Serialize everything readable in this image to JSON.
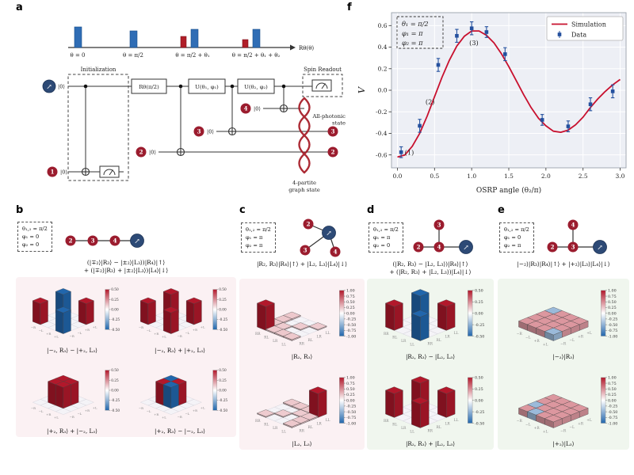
{
  "figure": {
    "panel_labels": {
      "a": "a",
      "b": "b",
      "c": "c",
      "d": "d",
      "e": "e",
      "f": "f"
    },
    "spin_arrow": "↗"
  },
  "panel_a": {
    "pulse_labels": [
      "θ = 0",
      "θ = π/2",
      "θ = π/2 + θ₁",
      "θ = π/2 + θ₁ + θ₂"
    ],
    "pulse_axis_label": "Rθ(θ)",
    "init_label": "Initialization",
    "readout_label": "Spin Readout",
    "gates": [
      "Rθ(π/2)",
      "U(θ₁, φ₁)",
      "U(θ₂, φ₂)"
    ],
    "ket0": "|0⟩",
    "qubits": [
      "1",
      "2",
      "3",
      "4"
    ],
    "allphotonic_label": [
      "All-photonic",
      "state"
    ],
    "graphstate_label": [
      "4-partite",
      "graph state"
    ]
  },
  "chart_data": {
    "type": "line+scatter",
    "title": "",
    "xlabel": "OSRP angle (θ₂/π)",
    "ylabel": "V",
    "xlim": [
      -0.08,
      3.08
    ],
    "ylim": [
      -0.72,
      0.72
    ],
    "xticks": [
      0,
      0.5,
      1,
      1.5,
      2,
      2.5,
      3
    ],
    "yticks": [
      -0.6,
      -0.4,
      -0.2,
      0,
      0.2,
      0.4,
      0.6
    ],
    "grid": true,
    "legend": [
      "Simulation",
      "Data"
    ],
    "legend_position": "upper right",
    "params_box": [
      "θ₁ = π/2",
      "φ₁ = π",
      "φ₂ = π"
    ],
    "annotations": [
      {
        "text": "(1)",
        "x": 0.16,
        "y": -0.6
      },
      {
        "text": "(2)",
        "x": 0.44,
        "y": -0.13
      },
      {
        "text": "(3)",
        "x": 1.03,
        "y": 0.42
      }
    ],
    "simulation": {
      "x": [
        0,
        0.1,
        0.2,
        0.3,
        0.4,
        0.5,
        0.6,
        0.7,
        0.8,
        0.9,
        1,
        1.1,
        1.2,
        1.3,
        1.4,
        1.5,
        1.6,
        1.7,
        1.8,
        1.9,
        2,
        2.1,
        2.2,
        2.3,
        2.4,
        2.5,
        2.6,
        2.7,
        2.8,
        2.9,
        3
      ],
      "y": [
        -0.62,
        -0.6,
        -0.52,
        -0.4,
        -0.24,
        -0.06,
        0.12,
        0.28,
        0.41,
        0.5,
        0.55,
        0.55,
        0.51,
        0.44,
        0.34,
        0.22,
        0.09,
        -0.04,
        -0.16,
        -0.26,
        -0.33,
        -0.38,
        -0.39,
        -0.37,
        -0.32,
        -0.25,
        -0.16,
        -0.08,
        -0.01,
        0.05,
        0.1
      ]
    },
    "data_points": [
      {
        "x": 0.05,
        "y": -0.575,
        "err": 0.05
      },
      {
        "x": 0.3,
        "y": -0.33,
        "err": 0.06
      },
      {
        "x": 0.55,
        "y": 0.235,
        "err": 0.06
      },
      {
        "x": 0.8,
        "y": 0.505,
        "err": 0.06
      },
      {
        "x": 1.0,
        "y": 0.575,
        "err": 0.06
      },
      {
        "x": 1.2,
        "y": 0.54,
        "err": 0.05
      },
      {
        "x": 1.45,
        "y": 0.335,
        "err": 0.06
      },
      {
        "x": 1.95,
        "y": -0.275,
        "err": 0.05
      },
      {
        "x": 2.3,
        "y": -0.335,
        "err": 0.05
      },
      {
        "x": 2.6,
        "y": -0.13,
        "err": 0.06
      },
      {
        "x": 2.9,
        "y": -0.01,
        "err": 0.06
      }
    ]
  },
  "panel_b": {
    "params": [
      "θ₁,₂ = π/2",
      "φ₁ = 0",
      "φ₂ = 0"
    ],
    "nodes": [
      "2",
      "3",
      "4"
    ],
    "state": [
      "(|∓₂⟩|R₃⟩ − |±₂⟩|L₃⟩)|R₄⟩|↑⟩",
      "+ (|∓₂⟩|R₃⟩ + |±₂⟩|L₃⟩)|L₄⟩|↓⟩"
    ],
    "colorbar": {
      "max": 0.5,
      "ticks": [
        "0.50",
        "0.25",
        "0.00",
        "-0.25",
        "-0.50"
      ]
    },
    "axis_labels": [
      "−R",
      "−L",
      "+R",
      "+L"
    ],
    "matrices": [
      {
        "label": "|−₂, R₃⟩ − |+₂, L₃⟩",
        "values": [
          [
            0.5,
            0,
            0,
            -0.5
          ],
          [
            0,
            0,
            0,
            0
          ],
          [
            0,
            0,
            0,
            0
          ],
          [
            -0.5,
            0,
            0,
            0.5
          ]
        ]
      },
      {
        "label": "|−₂, R₃⟩ + |+₂, L₃⟩",
        "values": [
          [
            0.5,
            0,
            0,
            0.5
          ],
          [
            0,
            0,
            0,
            0
          ],
          [
            0,
            0,
            0,
            0
          ],
          [
            0.5,
            0,
            0,
            0.5
          ]
        ]
      },
      {
        "label": "|+₂, R₃⟩ + |−₂, L₃⟩",
        "values": [
          [
            0,
            0,
            0,
            0
          ],
          [
            0,
            0.5,
            0.5,
            0
          ],
          [
            0,
            0.5,
            0.5,
            0
          ],
          [
            0,
            0,
            0,
            0
          ]
        ]
      },
      {
        "label": "|+₂, R₃⟩ − |−₂, L₃⟩",
        "values": [
          [
            0,
            0,
            0,
            0
          ],
          [
            0,
            0.5,
            -0.5,
            0
          ],
          [
            0,
            -0.5,
            0.5,
            0
          ],
          [
            0,
            0,
            0,
            0
          ]
        ]
      }
    ]
  },
  "panel_c": {
    "params": [
      "θ₁,₂ = π/2",
      "φ₁ = π",
      "φ₂ = π"
    ],
    "nodes": [
      "2",
      "3",
      "4"
    ],
    "state": [
      "|R₂, R₃⟩|R₄⟩|↑⟩ + |L₂, L₃⟩|L₄⟩|↓⟩"
    ],
    "colorbar": {
      "max": 1.0,
      "ticks": [
        "1.00",
        "0.75",
        "0.50",
        "0.25",
        "0.00",
        "-0.25",
        "-0.50",
        "-0.75",
        "-1.00"
      ]
    },
    "axis_labels": [
      "RR",
      "RL",
      "LR",
      "LL"
    ],
    "matrices": [
      {
        "label": "|R₂, R₃⟩",
        "values": [
          [
            1,
            0.05,
            0.05,
            0.05
          ],
          [
            0.05,
            0.04,
            0,
            0
          ],
          [
            0.05,
            0,
            0.04,
            0
          ],
          [
            0.05,
            0,
            0,
            0.04
          ]
        ]
      },
      {
        "label": "|L₂, L₃⟩",
        "values": [
          [
            0.04,
            0,
            0,
            0.05
          ],
          [
            0,
            0.04,
            0,
            0.05
          ],
          [
            0,
            0,
            0.04,
            0.05
          ],
          [
            0.05,
            0.05,
            0.05,
            1
          ]
        ]
      }
    ]
  },
  "panel_d": {
    "params": [
      "θ₁,₂ = π/2",
      "φ₁ = π",
      "φ₂ = 0"
    ],
    "nodes": [
      "3",
      "2",
      "4"
    ],
    "state": [
      "(|R₂, R₃⟩ − |L₂, L₃⟩)|R₄⟩|↑⟩",
      "+ (|R₂, R₃⟩ + |L₂, L₃⟩)|L₄⟩|↓⟩"
    ],
    "colorbar": {
      "max": 0.5,
      "ticks": [
        "0.50",
        "0.25",
        "0.00",
        "-0.25",
        "-0.50"
      ]
    },
    "axis_labels": [
      "RR",
      "RL",
      "LR",
      "LL"
    ],
    "matrices": [
      {
        "label": "|R₂, R₃⟩ − |L₂, L₃⟩",
        "values": [
          [
            0.5,
            0,
            0,
            -0.5
          ],
          [
            0,
            0,
            0,
            0
          ],
          [
            0,
            0,
            0,
            0
          ],
          [
            -0.5,
            0,
            0,
            0.5
          ]
        ]
      },
      {
        "label": "|R₂, R₃⟩ + |L₂, L₃⟩",
        "values": [
          [
            0.5,
            0,
            0,
            0.5
          ],
          [
            0,
            0,
            0,
            0
          ],
          [
            0,
            0,
            0,
            0
          ],
          [
            0.5,
            0,
            0,
            0.5
          ]
        ]
      }
    ]
  },
  "panel_e": {
    "params": [
      "θ₁,₂ = π/2",
      "φ₁ = 0",
      "φ₂ = π"
    ],
    "nodes": [
      "4",
      "2",
      "3"
    ],
    "state": [
      "|−₂⟩|R₃⟩|R₄⟩|↑⟩ + |+₂⟩|L₃⟩|L₄⟩|↓⟩"
    ],
    "colorbar": {
      "max": 1.0,
      "ticks": [
        "1.00",
        "0.75",
        "0.50",
        "0.25",
        "0.00",
        "-0.25",
        "-0.50",
        "-0.75",
        "-1.00"
      ]
    },
    "axis_labels": [
      "−R",
      "−L",
      "+R",
      "+L"
    ],
    "matrices": [
      {
        "label": "|−₂⟩|R₃⟩",
        "values": [
          [
            0.25,
            0.25,
            0.25,
            -0.25
          ],
          [
            0.25,
            0.25,
            0.25,
            0.25
          ],
          [
            0.25,
            0.25,
            0.25,
            0.25
          ],
          [
            -0.25,
            0.25,
            0.25,
            0.25
          ]
        ]
      },
      {
        "label": "|+₂⟩|L₃⟩",
        "values": [
          [
            0.25,
            -0.25,
            0.25,
            0.25
          ],
          [
            -0.25,
            0.25,
            0.25,
            0.25
          ],
          [
            0.25,
            0.25,
            0.25,
            0.25
          ],
          [
            0.25,
            0.25,
            0.25,
            0.25
          ]
        ]
      }
    ]
  }
}
